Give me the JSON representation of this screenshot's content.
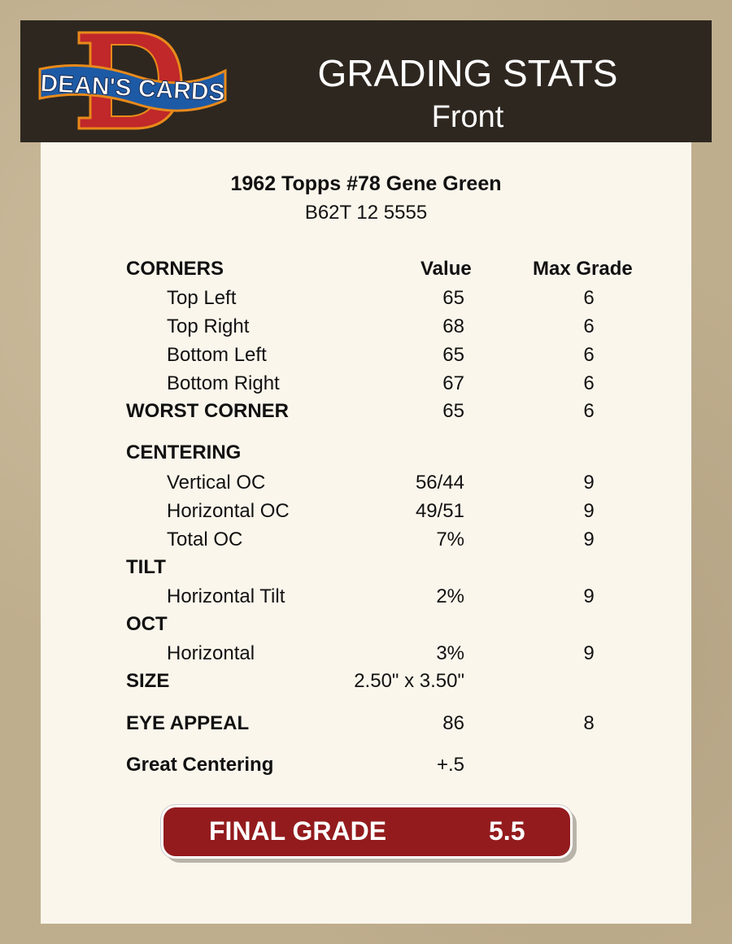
{
  "header": {
    "logo_text": "DEAN'S CARDS",
    "title": "GRADING STATS",
    "subtitle": "Front"
  },
  "card": {
    "title": "1962 Topps #78 Gene Green",
    "code": "B62T 12 5555"
  },
  "columns": {
    "value": "Value",
    "max": "Max Grade"
  },
  "rows": [
    {
      "label": "CORNERS",
      "value": "",
      "max": "",
      "type": "hdr"
    },
    {
      "label": "Top Left",
      "value": "65",
      "max": "6",
      "type": "sub"
    },
    {
      "label": "Top Right",
      "value": "68",
      "max": "6",
      "type": "sub"
    },
    {
      "label": "Bottom Left",
      "value": "65",
      "max": "6",
      "type": "sub"
    },
    {
      "label": "Bottom Right",
      "value": "67",
      "max": "6",
      "type": "sub"
    },
    {
      "label": "WORST CORNER",
      "value": "65",
      "max": "6",
      "type": "hdr"
    },
    {
      "label": "CENTERING",
      "value": "",
      "max": "",
      "type": "hdr"
    },
    {
      "label": "Vertical OC",
      "value": "56/44",
      "max": "9",
      "type": "sub"
    },
    {
      "label": "Horizontal OC",
      "value": "49/51",
      "max": "9",
      "type": "sub"
    },
    {
      "label": "Total OC",
      "value": "7%",
      "max": "9",
      "type": "sub"
    },
    {
      "label": "TILT",
      "value": "",
      "max": "",
      "type": "hdr"
    },
    {
      "label": "Horizontal Tilt",
      "value": "2%",
      "max": "9",
      "type": "sub"
    },
    {
      "label": "OCT",
      "value": "",
      "max": "",
      "type": "hdr"
    },
    {
      "label": "Horizontal",
      "value": "3%",
      "max": "9",
      "type": "sub"
    },
    {
      "label": "SIZE",
      "value": "2.50\" x 3.50\"",
      "max": "",
      "type": "hdr"
    },
    {
      "label": "EYE APPEAL",
      "value": "86",
      "max": "8",
      "type": "hdr"
    },
    {
      "label": "Great Centering",
      "value": "+.5",
      "max": "",
      "type": "hdr"
    }
  ],
  "final": {
    "label": "FINAL GRADE",
    "value": "5.5"
  },
  "colors": {
    "header_bg": "#2e2720",
    "final_bg": "#931b1d",
    "panel_bg": "#fbf6ec"
  }
}
